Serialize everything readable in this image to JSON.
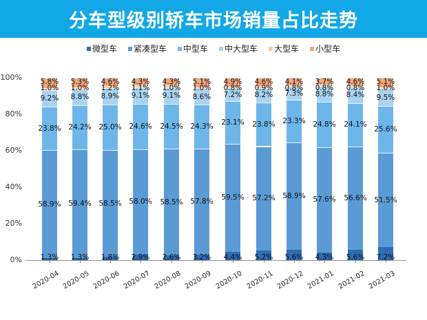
{
  "header": {
    "title": "分车型级别轿车市场销量占比走势"
  },
  "legend": [
    {
      "label": "微型车",
      "color": "#2e6db4"
    },
    {
      "label": "紧凑型车",
      "color": "#5b9bd5"
    },
    {
      "label": "中型车",
      "color": "#6db6ea"
    },
    {
      "label": "中大型车",
      "color": "#a9d3f0"
    },
    {
      "label": "大型车",
      "color": "#f4c9a8"
    },
    {
      "label": "小型车",
      "color": "#f2a67a"
    }
  ],
  "chart_data": {
    "type": "bar",
    "stacked": true,
    "percent": true,
    "title": "分车型级别轿车市场销量占比走势",
    "xlabel": "",
    "ylabel": "",
    "ylim": [
      0,
      100
    ],
    "yticks": [
      "0%",
      "20%",
      "40%",
      "60%",
      "80%",
      "100%"
    ],
    "grid": false,
    "legend_position": "top",
    "categories": [
      "2020-04",
      "2020-05",
      "2020-06",
      "2020-07",
      "2020-08",
      "2020-09",
      "2020-10",
      "2020-11",
      "2020-12",
      "2021-01",
      "2021-02",
      "2021-03"
    ],
    "series": [
      {
        "name": "微型车",
        "color": "#2e6db4",
        "values": [
          1.3,
          1.3,
          1.8,
          2.9,
          2.6,
          3.2,
          4.4,
          5.2,
          5.6,
          4.3,
          5.6,
          7.2
        ]
      },
      {
        "name": "紧凑型车",
        "color": "#5b9bd5",
        "values": [
          58.9,
          59.4,
          58.5,
          58.0,
          58.5,
          57.8,
          59.5,
          57.2,
          58.9,
          57.6,
          56.6,
          51.5
        ]
      },
      {
        "name": "中型车",
        "color": "#6db6ea",
        "values": [
          23.8,
          24.2,
          25.0,
          24.6,
          24.5,
          24.3,
          23.1,
          23.8,
          23.3,
          24.8,
          24.1,
          25.6
        ]
      },
      {
        "name": "中大型车",
        "color": "#a9d3f0",
        "values": [
          9.2,
          8.8,
          8.9,
          9.1,
          9.1,
          8.6,
          7.2,
          8.2,
          7.3,
          8.8,
          8.4,
          9.5
        ]
      },
      {
        "name": "大型车",
        "color": "#f4c9a8",
        "values": [
          1.0,
          1.0,
          1.2,
          1.1,
          1.0,
          1.0,
          0.8,
          0.9,
          0.8,
          0.8,
          0.8,
          1.0
        ]
      },
      {
        "name": "小型车",
        "color": "#f2a67a",
        "values": [
          5.8,
          5.3,
          4.6,
          4.3,
          4.3,
          5.1,
          4.9,
          4.6,
          4.1,
          3.7,
          4.6,
          5.1
        ]
      }
    ]
  }
}
